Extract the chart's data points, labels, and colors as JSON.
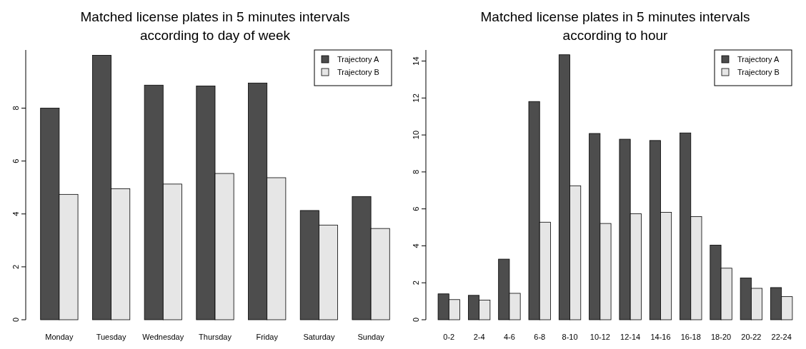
{
  "chart_data": [
    {
      "type": "bar",
      "title": "Matched license plates in 5 minutes intervals\naccording to day of week",
      "categories": [
        "Monday",
        "Tuesday",
        "Wednesday",
        "Thursday",
        "Friday",
        "Saturday",
        "Sunday"
      ],
      "series": [
        {
          "name": "Trajectory A",
          "color": "#4d4d4d",
          "values": [
            8.0,
            10.0,
            8.87,
            8.84,
            8.95,
            4.13,
            4.66
          ]
        },
        {
          "name": "Trajectory B",
          "color": "#e6e6e6",
          "values": [
            4.74,
            4.95,
            5.13,
            5.53,
            5.37,
            3.58,
            3.45
          ]
        }
      ],
      "ylim": [
        0,
        10.2
      ],
      "yticks": [
        0,
        2,
        4,
        6,
        8
      ],
      "legend": "top right",
      "grid": false
    },
    {
      "type": "bar",
      "title": "Matched license plates in 5 minutes intervals\naccording to hour",
      "categories": [
        "0-2",
        "2-4",
        "4-6",
        "6-8",
        "8-10",
        "10-12",
        "12-14",
        "14-16",
        "16-18",
        "18-20",
        "20-22",
        "22-24"
      ],
      "series": [
        {
          "name": "Trajectory A",
          "color": "#4d4d4d",
          "values": [
            1.4,
            1.32,
            3.28,
            11.81,
            14.34,
            10.08,
            9.77,
            9.7,
            10.11,
            4.04,
            2.26,
            1.74
          ]
        },
        {
          "name": "Trajectory B",
          "color": "#e6e6e6",
          "values": [
            1.09,
            1.06,
            1.43,
            5.28,
            7.25,
            5.21,
            5.74,
            5.81,
            5.58,
            2.79,
            1.7,
            1.25
          ]
        }
      ],
      "ylim": [
        0,
        14.6
      ],
      "yticks": [
        0,
        2,
        4,
        6,
        8,
        10,
        12,
        14
      ],
      "legend": "top right",
      "grid": false
    }
  ]
}
